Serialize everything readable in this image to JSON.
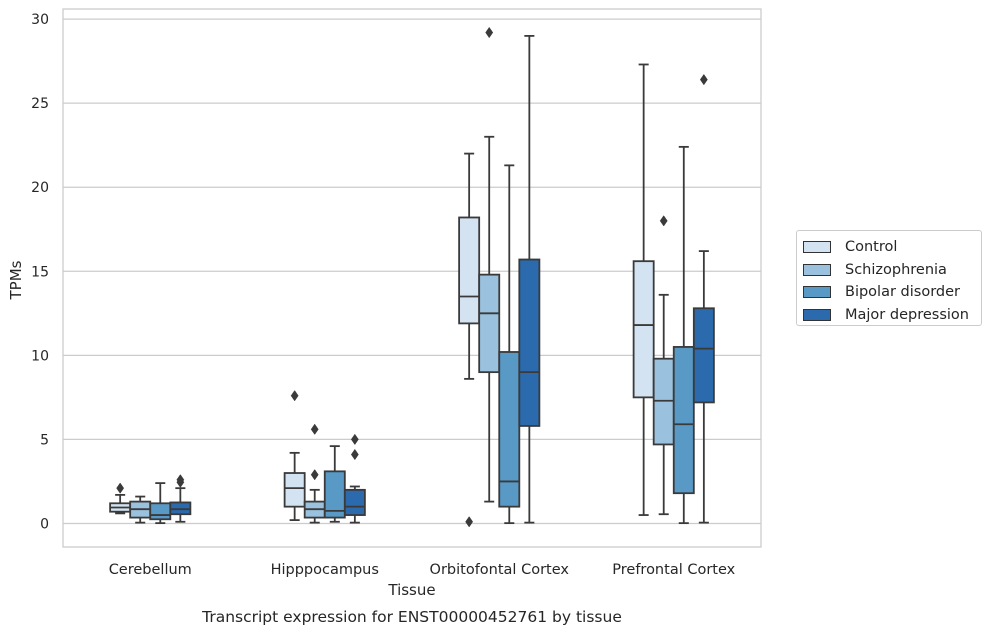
{
  "chart_data": {
    "type": "box",
    "title": "Transcript expression for ENST00000452761 by tissue",
    "xlabel": "Tissue",
    "ylabel": "TPMs",
    "ylim": [
      -1.4,
      30.6
    ],
    "yticks": [
      0,
      5,
      10,
      15,
      20,
      25,
      30
    ],
    "grid": true,
    "legend_placement": "center-right",
    "categories": [
      "Cerebellum",
      "Hipppocampus",
      "Orbitofontal Cortex",
      "Prefrontal Cortex"
    ],
    "series": [
      {
        "name": "Control",
        "color": "#d4e3f2",
        "boxes": [
          {
            "whislo": 0.6,
            "q1": 0.7,
            "med": 0.95,
            "q3": 1.2,
            "whishi": 1.7,
            "fliers": [
              2.1
            ]
          },
          {
            "whislo": 0.2,
            "q1": 1.0,
            "med": 2.1,
            "q3": 3.0,
            "whishi": 4.2,
            "fliers": [
              7.6
            ]
          },
          {
            "whislo": 8.6,
            "q1": 11.9,
            "med": 13.5,
            "q3": 18.2,
            "whishi": 22.0,
            "fliers": [
              0.1
            ]
          },
          {
            "whislo": 0.5,
            "q1": 7.5,
            "med": 11.8,
            "q3": 15.6,
            "whishi": 27.3,
            "fliers": []
          }
        ]
      },
      {
        "name": "Schizophrenia",
        "color": "#9ac1dd",
        "boxes": [
          {
            "whislo": 0.05,
            "q1": 0.35,
            "med": 0.85,
            "q3": 1.3,
            "whishi": 1.6,
            "fliers": []
          },
          {
            "whislo": 0.05,
            "q1": 0.35,
            "med": 0.85,
            "q3": 1.3,
            "whishi": 2.0,
            "fliers": [
              2.9,
              5.6
            ]
          },
          {
            "whislo": 1.3,
            "q1": 9.0,
            "med": 12.5,
            "q3": 14.8,
            "whishi": 23.0,
            "fliers": [
              29.2
            ]
          },
          {
            "whislo": 0.55,
            "q1": 4.7,
            "med": 7.3,
            "q3": 9.8,
            "whishi": 13.6,
            "fliers": [
              18.0
            ]
          }
        ]
      },
      {
        "name": "Bipolar disorder",
        "color": "#5899c6",
        "boxes": [
          {
            "whislo": 0.02,
            "q1": 0.25,
            "med": 0.5,
            "q3": 1.2,
            "whishi": 2.4,
            "fliers": []
          },
          {
            "whislo": 0.1,
            "q1": 0.35,
            "med": 0.75,
            "q3": 3.1,
            "whishi": 4.6,
            "fliers": []
          },
          {
            "whislo": 0.02,
            "q1": 1.0,
            "med": 2.5,
            "q3": 10.2,
            "whishi": 21.3,
            "fliers": []
          },
          {
            "whislo": 0.02,
            "q1": 1.8,
            "med": 5.9,
            "q3": 10.5,
            "whishi": 22.4,
            "fliers": []
          }
        ]
      },
      {
        "name": "Major depression",
        "color": "#2a6aad",
        "boxes": [
          {
            "whislo": 0.1,
            "q1": 0.55,
            "med": 0.85,
            "q3": 1.25,
            "whishi": 2.1,
            "fliers": [
              2.45,
              2.6
            ]
          },
          {
            "whislo": 0.05,
            "q1": 0.5,
            "med": 1.0,
            "q3": 2.0,
            "whishi": 2.2,
            "fliers": [
              4.1,
              5.0
            ]
          },
          {
            "whislo": 0.05,
            "q1": 5.8,
            "med": 9.0,
            "q3": 15.7,
            "whishi": 29.0,
            "fliers": []
          },
          {
            "whislo": 0.05,
            "q1": 7.2,
            "med": 10.4,
            "q3": 12.8,
            "whishi": 16.2,
            "fliers": [
              26.4
            ]
          }
        ]
      }
    ]
  }
}
